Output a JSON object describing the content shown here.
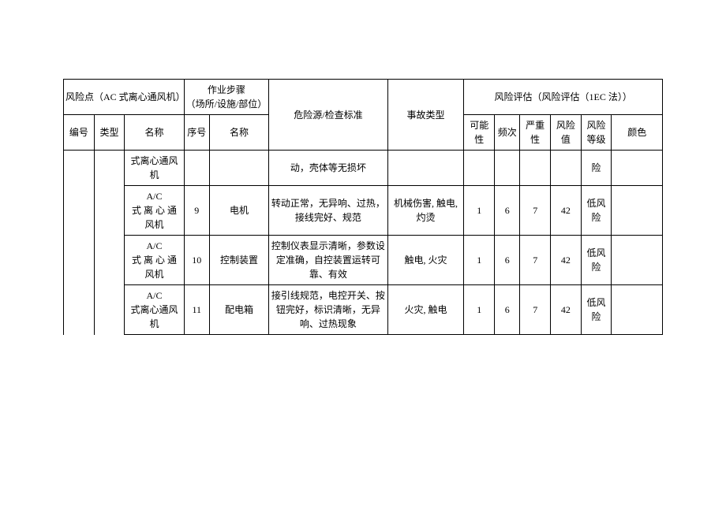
{
  "header": {
    "group_risk_point": "风险点（AC 式离心通风机）",
    "group_step": "作业步骤\n（场所/设施/部位）",
    "group_hazard": "危险源/检查标准",
    "group_accident": "事故类型",
    "group_eval": "风险评估（风险评估（1EC 法））",
    "col_id": "编号",
    "col_type": "类型",
    "col_name": "名称",
    "col_seq": "序号",
    "col_step_name": "名称",
    "col_possibility": "可能性",
    "col_freq": "频次",
    "col_severity": "严重性",
    "col_value": "风险值",
    "col_level": "风险\n等级",
    "col_color": "颜色"
  },
  "rows": [
    {
      "id": "",
      "type": "",
      "name": "式离心通风\n机",
      "seq": "",
      "step_name": "",
      "hazard": "动，壳体等无损坏",
      "accident": "",
      "possibility": "",
      "freq": "",
      "severity": "",
      "value": "",
      "level": "险",
      "color": ""
    },
    {
      "id": "",
      "type": "",
      "name": "A/C\n式 离 心 通\n风机",
      "seq": "9",
      "step_name": "电机",
      "hazard": "转动正常，无异响、过热，\n接线完好、规范",
      "accident": "机械伤害, 触电,\n灼烫",
      "possibility": "1",
      "freq": "6",
      "severity": "7",
      "value": "42",
      "level": "低风险",
      "color": ""
    },
    {
      "id": "",
      "type": "",
      "name": "A/C\n式 离 心 通\n风机",
      "seq": "10",
      "step_name": "控制装置",
      "hazard": "控制仪表显示清晰，参数设\n定准确，自控装置运转可\n靠、有效",
      "accident": "触电, 火灾",
      "possibility": "1",
      "freq": "6",
      "severity": "7",
      "value": "42",
      "level": "低风险",
      "color": ""
    },
    {
      "id": "",
      "type": "",
      "name": "A/C\n式离心通风\n机",
      "seq": "11",
      "step_name": "配电箱",
      "hazard": "接引线规范，电控开关、按\n钮完好，标识清晰，无异\n响、过热现象",
      "accident": "火灾, 触电",
      "possibility": "1",
      "freq": "6",
      "severity": "7",
      "value": "42",
      "level": "低风险",
      "color": ""
    }
  ],
  "style": {
    "widths": {
      "id": 36,
      "type": 36,
      "name": 70,
      "seq": 30,
      "step_name": 70,
      "hazard": 140,
      "accident": 90,
      "possibility": 36,
      "freq": 30,
      "severity": 36,
      "value": 36,
      "level": 36,
      "color": 60
    }
  }
}
